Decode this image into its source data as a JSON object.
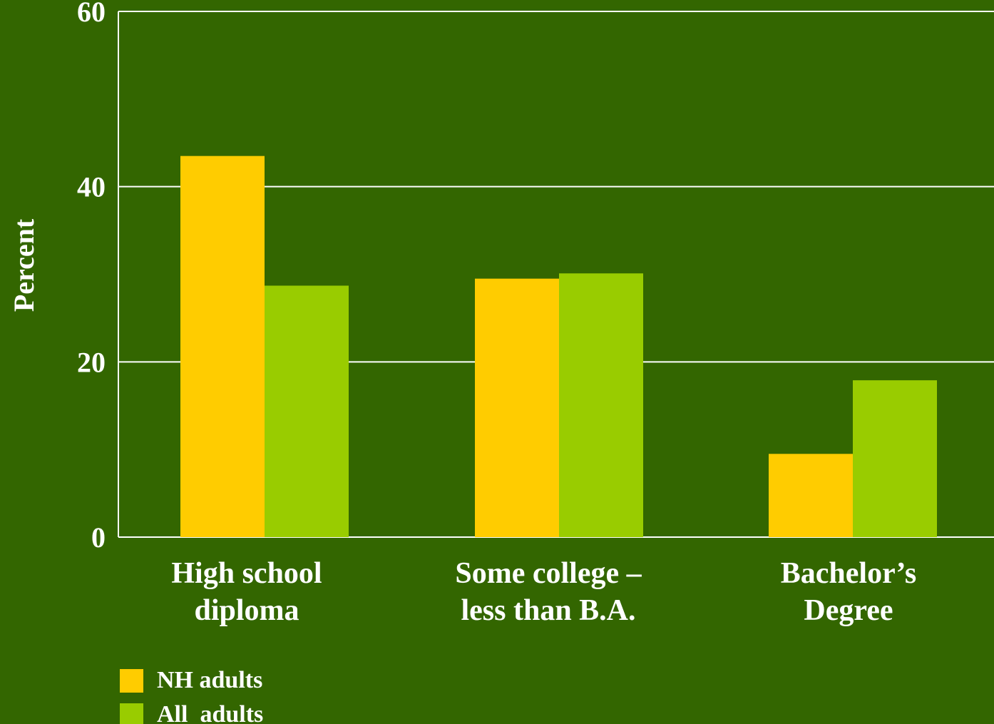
{
  "chart_data": {
    "type": "bar",
    "categories": [
      [
        "High school",
        "diploma"
      ],
      [
        "Some college –",
        "less than B.A."
      ],
      [
        "Bachelor’s",
        "Degree"
      ]
    ],
    "series": [
      {
        "name": "NH adults",
        "values": [
          43.5,
          29.5,
          9.5
        ]
      },
      {
        "name": "All  adults",
        "values": [
          28.7,
          30.1,
          17.9
        ]
      }
    ],
    "title": "",
    "xlabel": "",
    "ylabel": "Percent",
    "ylim": [
      0,
      60
    ],
    "yticks": [
      0,
      20,
      40,
      60
    ],
    "grid": true,
    "legend": "bottom-left"
  },
  "colors": {
    "background": "#336600",
    "grid": "#ffffff",
    "series": [
      "#ffcc00",
      "#99cc00"
    ]
  }
}
